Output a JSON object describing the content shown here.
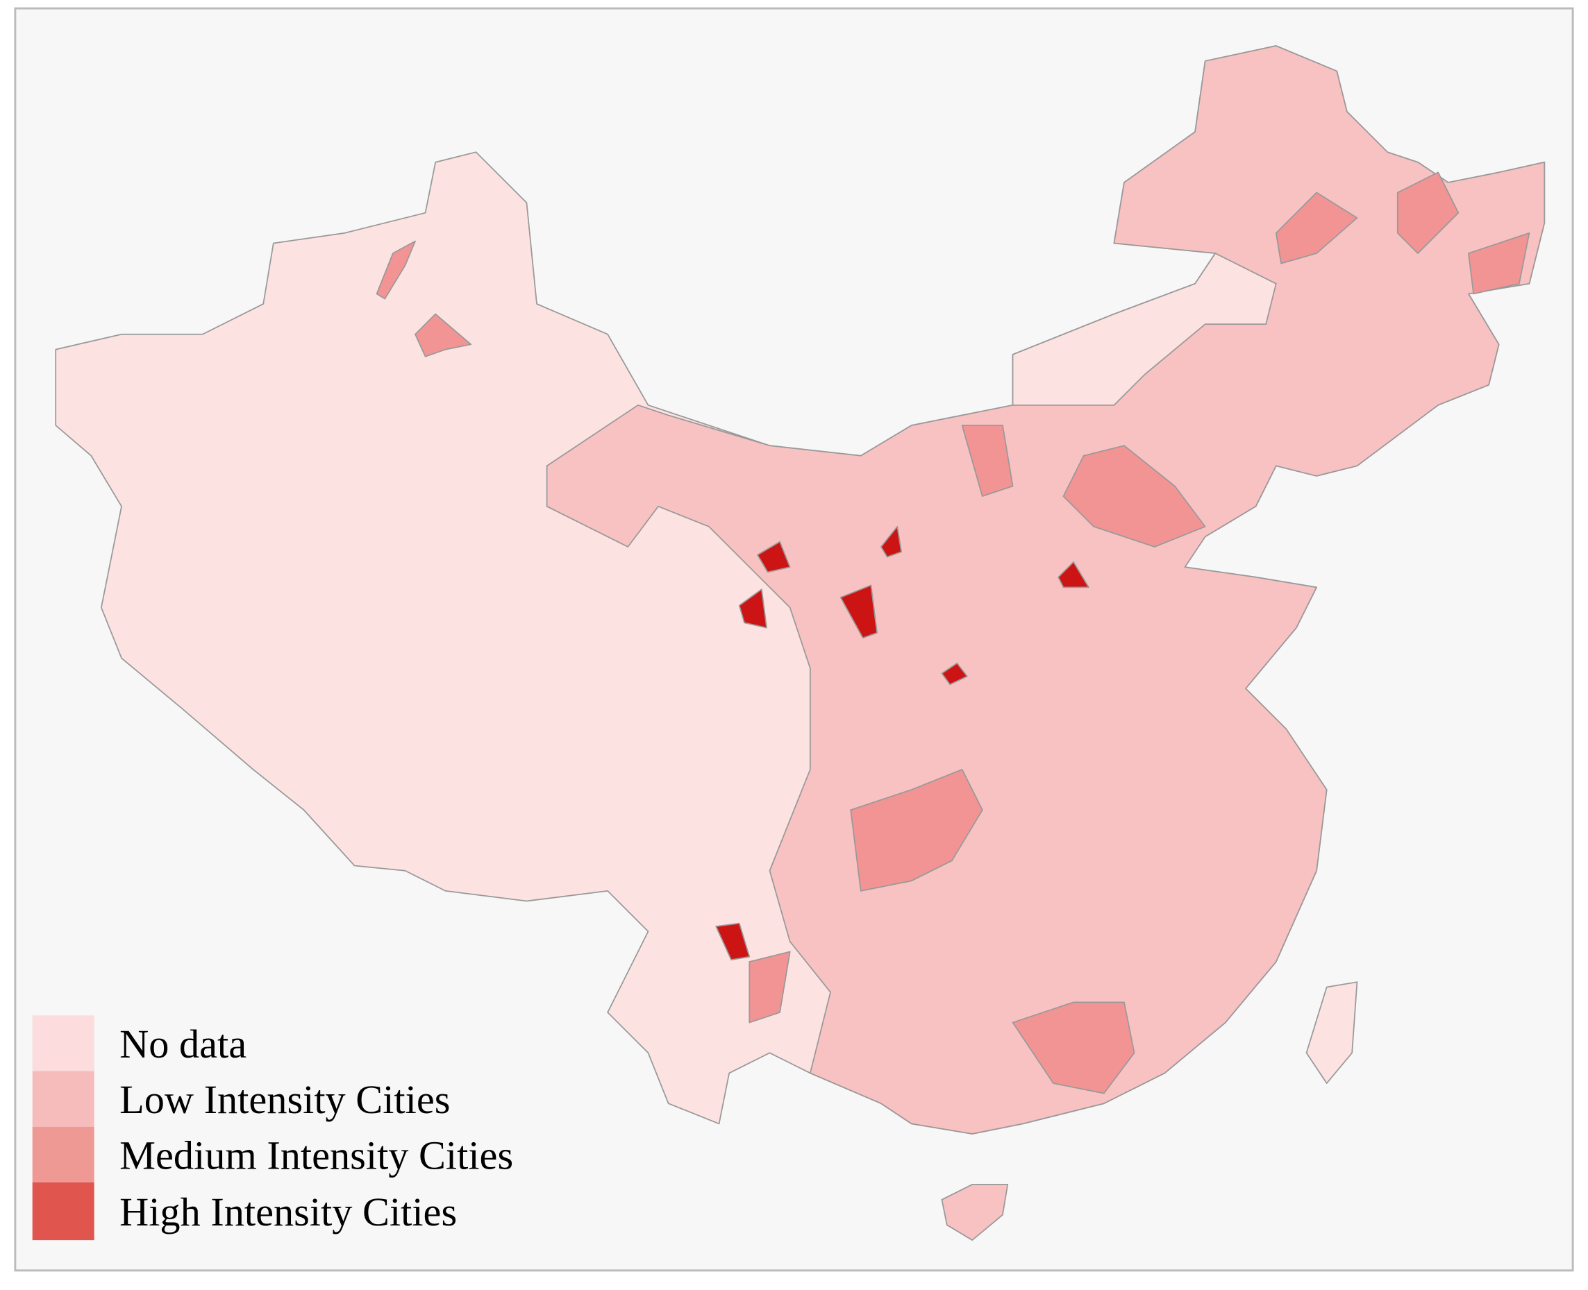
{
  "legend": {
    "items": [
      {
        "label": "No data",
        "color": "#fcdcdc"
      },
      {
        "label": "Low Intensity Cities",
        "color": "#f5bcbb"
      },
      {
        "label": "Medium Intensity Cities",
        "color": "#ee9994"
      },
      {
        "label": "High Intensity Cities",
        "color": "#e0554d"
      }
    ]
  }
}
